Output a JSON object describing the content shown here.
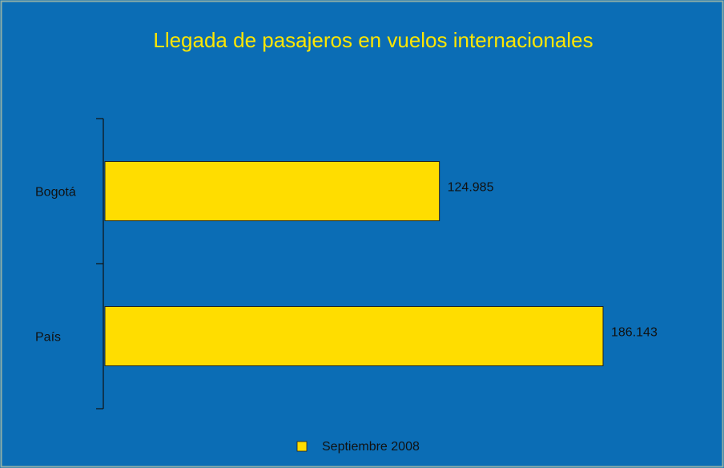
{
  "chart_data": {
    "type": "bar",
    "orientation": "horizontal",
    "title": "Llegada de pasajeros en vuelos internacionales",
    "categories": [
      "Bogotá",
      "País"
    ],
    "series": [
      {
        "name": "Septiembre 2008",
        "color": "#ffdd00",
        "values": [
          124985,
          186143
        ],
        "value_labels": [
          "124.985",
          "186.143"
        ]
      }
    ],
    "legend": "bottom"
  }
}
